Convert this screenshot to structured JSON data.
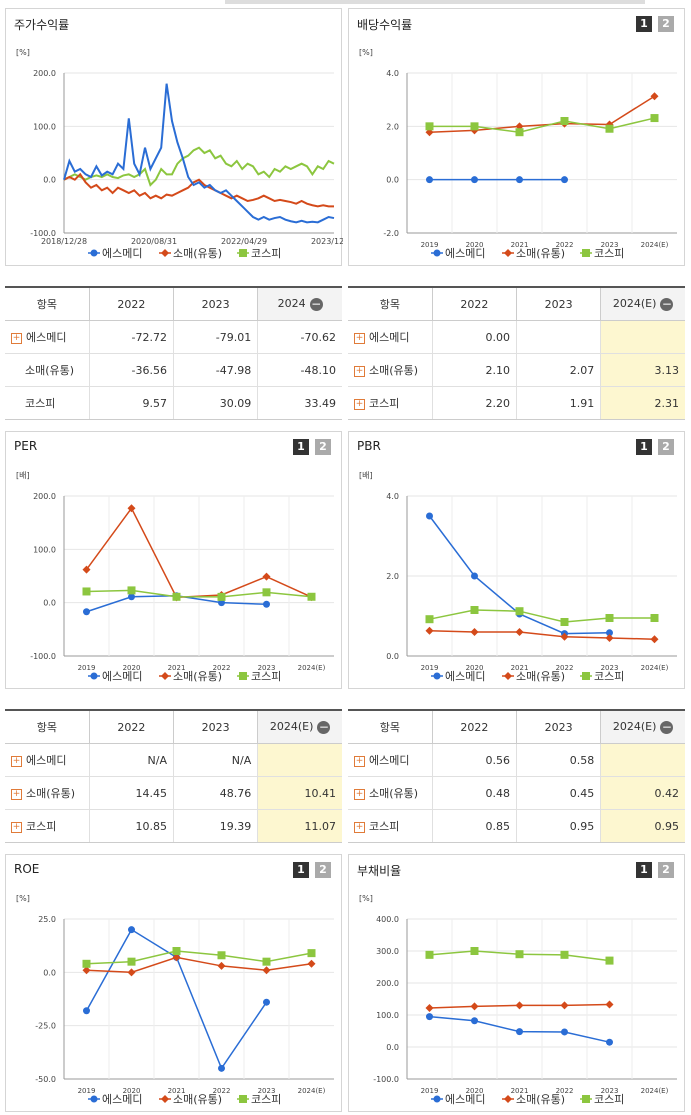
{
  "colors": {
    "company": "#2a6dd5",
    "sector": "#d44a1a",
    "kospi": "#8cc63f"
  },
  "panels": {
    "stock": {
      "title": "주가수익률"
    },
    "div": {
      "title": "배당수익률",
      "btn1": "1",
      "btn2": "2"
    },
    "per": {
      "title": "PER",
      "btn1": "1",
      "btn2": "2"
    },
    "pbr": {
      "title": "PBR",
      "btn1": "1",
      "btn2": "2"
    },
    "roe": {
      "title": "ROE",
      "btn1": "1",
      "btn2": "2"
    },
    "debt": {
      "title": "부채비율",
      "btn1": "1",
      "btn2": "2"
    }
  },
  "legend": [
    "에스메디",
    "소매(유통)",
    "코스피"
  ],
  "tables": {
    "stock": {
      "headers": [
        "항목",
        "2022",
        "2023",
        "2024"
      ],
      "rows": [
        {
          "name": "에스메디",
          "plus": true,
          "cells": [
            "-72.72",
            "-79.01",
            "-70.62"
          ]
        },
        {
          "name": "소매(유통)",
          "plus": false,
          "cells": [
            "-36.56",
            "-47.98",
            "-48.10"
          ]
        },
        {
          "name": "코스피",
          "plus": false,
          "cells": [
            "9.57",
            "30.09",
            "33.49"
          ]
        }
      ]
    },
    "div": {
      "headers": [
        "항목",
        "2022",
        "2023",
        "2024(E)"
      ],
      "rows": [
        {
          "name": "에스메디",
          "plus": true,
          "cells": [
            "0.00",
            "",
            ""
          ]
        },
        {
          "name": "소매(유통)",
          "plus": true,
          "cells": [
            "2.10",
            "2.07",
            "3.13"
          ]
        },
        {
          "name": "코스피",
          "plus": true,
          "cells": [
            "2.20",
            "1.91",
            "2.31"
          ]
        }
      ]
    },
    "per": {
      "headers": [
        "항목",
        "2022",
        "2023",
        "2024(E)"
      ],
      "rows": [
        {
          "name": "에스메디",
          "plus": true,
          "cells": [
            "N/A",
            "N/A",
            ""
          ]
        },
        {
          "name": "소매(유통)",
          "plus": true,
          "cells": [
            "14.45",
            "48.76",
            "10.41"
          ]
        },
        {
          "name": "코스피",
          "plus": true,
          "cells": [
            "10.85",
            "19.39",
            "11.07"
          ]
        }
      ]
    },
    "pbr": {
      "headers": [
        "항목",
        "2022",
        "2023",
        "2024(E)"
      ],
      "rows": [
        {
          "name": "에스메디",
          "plus": true,
          "cells": [
            "0.56",
            "0.58",
            ""
          ]
        },
        {
          "name": "소매(유통)",
          "plus": true,
          "cells": [
            "0.48",
            "0.45",
            "0.42"
          ]
        },
        {
          "name": "코스피",
          "plus": true,
          "cells": [
            "0.85",
            "0.95",
            "0.95"
          ]
        }
      ]
    }
  },
  "chart_data": [
    {
      "id": "stock",
      "type": "line",
      "unit": "[%]",
      "ylim": [
        -100,
        200
      ],
      "yticks": [
        "200.0",
        "100.0",
        "0.0",
        "-100.0"
      ],
      "xticks": [
        "2018/12/28",
        "2020/08/31",
        "2022/04/29",
        "2023/12/28"
      ],
      "x": [
        0,
        0.02,
        0.04,
        0.06,
        0.08,
        0.1,
        0.12,
        0.14,
        0.16,
        0.18,
        0.2,
        0.22,
        0.24,
        0.26,
        0.28,
        0.3,
        0.32,
        0.34,
        0.36,
        0.38,
        0.4,
        0.42,
        0.44,
        0.46,
        0.48,
        0.5,
        0.52,
        0.54,
        0.56,
        0.58,
        0.6,
        0.62,
        0.64,
        0.66,
        0.68,
        0.7,
        0.72,
        0.74,
        0.76,
        0.78,
        0.8,
        0.82,
        0.84,
        0.86,
        0.88,
        0.9,
        0.92,
        0.94,
        0.96,
        0.98,
        1.0
      ],
      "series": [
        {
          "name": "에스메디",
          "color": "#2a6dd5",
          "values": [
            0,
            35,
            15,
            20,
            10,
            5,
            25,
            8,
            15,
            10,
            30,
            20,
            115,
            30,
            10,
            60,
            20,
            40,
            60,
            180,
            110,
            70,
            40,
            5,
            -10,
            -5,
            -15,
            -10,
            -20,
            -25,
            -20,
            -30,
            -40,
            -50,
            -60,
            -70,
            -75,
            -70,
            -75,
            -72,
            -70,
            -75,
            -78,
            -80,
            -77,
            -80,
            -79,
            -80,
            -75,
            -70,
            -72
          ]
        },
        {
          "name": "소매(유통)",
          "color": "#d44a1a",
          "values": [
            0,
            5,
            0,
            10,
            -5,
            -15,
            -10,
            -20,
            -15,
            -25,
            -15,
            -20,
            -25,
            -20,
            -30,
            -25,
            -35,
            -30,
            -35,
            -28,
            -30,
            -25,
            -20,
            -15,
            -5,
            0,
            -10,
            -15,
            -20,
            -25,
            -30,
            -35,
            -30,
            -35,
            -40,
            -38,
            -35,
            -30,
            -35,
            -40,
            -38,
            -40,
            -42,
            -45,
            -40,
            -45,
            -48,
            -50,
            -48,
            -50,
            -50
          ]
        },
        {
          "name": "코스피",
          "color": "#8cc63f",
          "values": [
            0,
            5,
            10,
            5,
            0,
            5,
            8,
            5,
            10,
            5,
            3,
            8,
            10,
            5,
            10,
            20,
            -10,
            0,
            20,
            10,
            10,
            30,
            40,
            45,
            55,
            60,
            50,
            55,
            40,
            45,
            30,
            25,
            35,
            20,
            30,
            25,
            10,
            15,
            5,
            20,
            15,
            25,
            20,
            25,
            30,
            25,
            10,
            25,
            20,
            35,
            30
          ]
        }
      ]
    },
    {
      "id": "div",
      "type": "line",
      "unit": "[%]",
      "ylim": [
        -2,
        4
      ],
      "yticks": [
        "4.0",
        "2.0",
        "0.0",
        "-2.0"
      ],
      "categories": [
        "2019",
        "2020",
        "2021",
        "2022",
        "2023",
        "2024(E)"
      ],
      "series": [
        {
          "name": "에스메디",
          "color": "#2a6dd5",
          "values": [
            0.0,
            0.0,
            0.0,
            0.0,
            null,
            null
          ]
        },
        {
          "name": "소매(유통)",
          "color": "#d44a1a",
          "values": [
            1.78,
            1.85,
            2.0,
            2.1,
            2.07,
            3.13
          ]
        },
        {
          "name": "코스피",
          "color": "#8cc63f",
          "values": [
            2.0,
            2.0,
            1.78,
            2.2,
            1.91,
            2.31
          ]
        }
      ]
    },
    {
      "id": "per",
      "type": "line",
      "unit": "[배]",
      "ylim": [
        -100,
        200
      ],
      "yticks": [
        "200.0",
        "100.0",
        "0.0",
        "-100.0"
      ],
      "categories": [
        "2019",
        "2020",
        "2021",
        "2022",
        "2023",
        "2024(E)"
      ],
      "series": [
        {
          "name": "에스메디",
          "color": "#2a6dd5",
          "values": [
            -17,
            11,
            13,
            0,
            -3,
            null
          ]
        },
        {
          "name": "소매(유통)",
          "color": "#d44a1a",
          "values": [
            62,
            177,
            10,
            14.45,
            48.76,
            10.41
          ]
        },
        {
          "name": "코스피",
          "color": "#8cc63f",
          "values": [
            21,
            23,
            11,
            10.85,
            19.39,
            11.07
          ]
        }
      ]
    },
    {
      "id": "pbr",
      "type": "line",
      "unit": "[배]",
      "ylim": [
        0,
        4
      ],
      "yticks": [
        "4.0",
        "2.0",
        "0.0"
      ],
      "categories": [
        "2019",
        "2020",
        "2021",
        "2022",
        "2023",
        "2024(E)"
      ],
      "series": [
        {
          "name": "에스메디",
          "color": "#2a6dd5",
          "values": [
            3.5,
            2.0,
            1.05,
            0.56,
            0.58,
            null
          ]
        },
        {
          "name": "소매(유통)",
          "color": "#d44a1a",
          "values": [
            0.63,
            0.6,
            0.6,
            0.48,
            0.45,
            0.42
          ]
        },
        {
          "name": "코스피",
          "color": "#8cc63f",
          "values": [
            0.92,
            1.15,
            1.12,
            0.85,
            0.95,
            0.95
          ]
        }
      ]
    },
    {
      "id": "roe",
      "type": "line",
      "unit": "[%]",
      "ylim": [
        -50,
        25
      ],
      "yticks": [
        "25.0",
        "0.0",
        "-25.0",
        "-50.0"
      ],
      "categories": [
        "2019",
        "2020",
        "2021",
        "2022",
        "2023",
        "2024(E)"
      ],
      "series": [
        {
          "name": "에스메디",
          "color": "#2a6dd5",
          "values": [
            -18,
            20,
            7,
            -45,
            -14,
            null
          ]
        },
        {
          "name": "소매(유통)",
          "color": "#d44a1a",
          "values": [
            1,
            0,
            7,
            3,
            1,
            4
          ]
        },
        {
          "name": "코스피",
          "color": "#8cc63f",
          "values": [
            4,
            5,
            10,
            8,
            5,
            9
          ]
        }
      ]
    },
    {
      "id": "debt",
      "type": "line",
      "unit": "[%]",
      "ylim": [
        -100,
        400
      ],
      "yticks": [
        "400.0",
        "300.0",
        "200.0",
        "100.0",
        "0.0",
        "-100.0"
      ],
      "categories": [
        "2019",
        "2020",
        "2021",
        "2022",
        "2023",
        "2024(E)"
      ],
      "series": [
        {
          "name": "에스메디",
          "color": "#2a6dd5",
          "values": [
            95,
            82,
            48,
            47,
            15,
            null
          ]
        },
        {
          "name": "소매(유통)",
          "color": "#d44a1a",
          "values": [
            122,
            127,
            130,
            130,
            133,
            null
          ]
        },
        {
          "name": "코스피",
          "color": "#8cc63f",
          "values": [
            288,
            300,
            290,
            288,
            270,
            null
          ]
        }
      ]
    }
  ]
}
